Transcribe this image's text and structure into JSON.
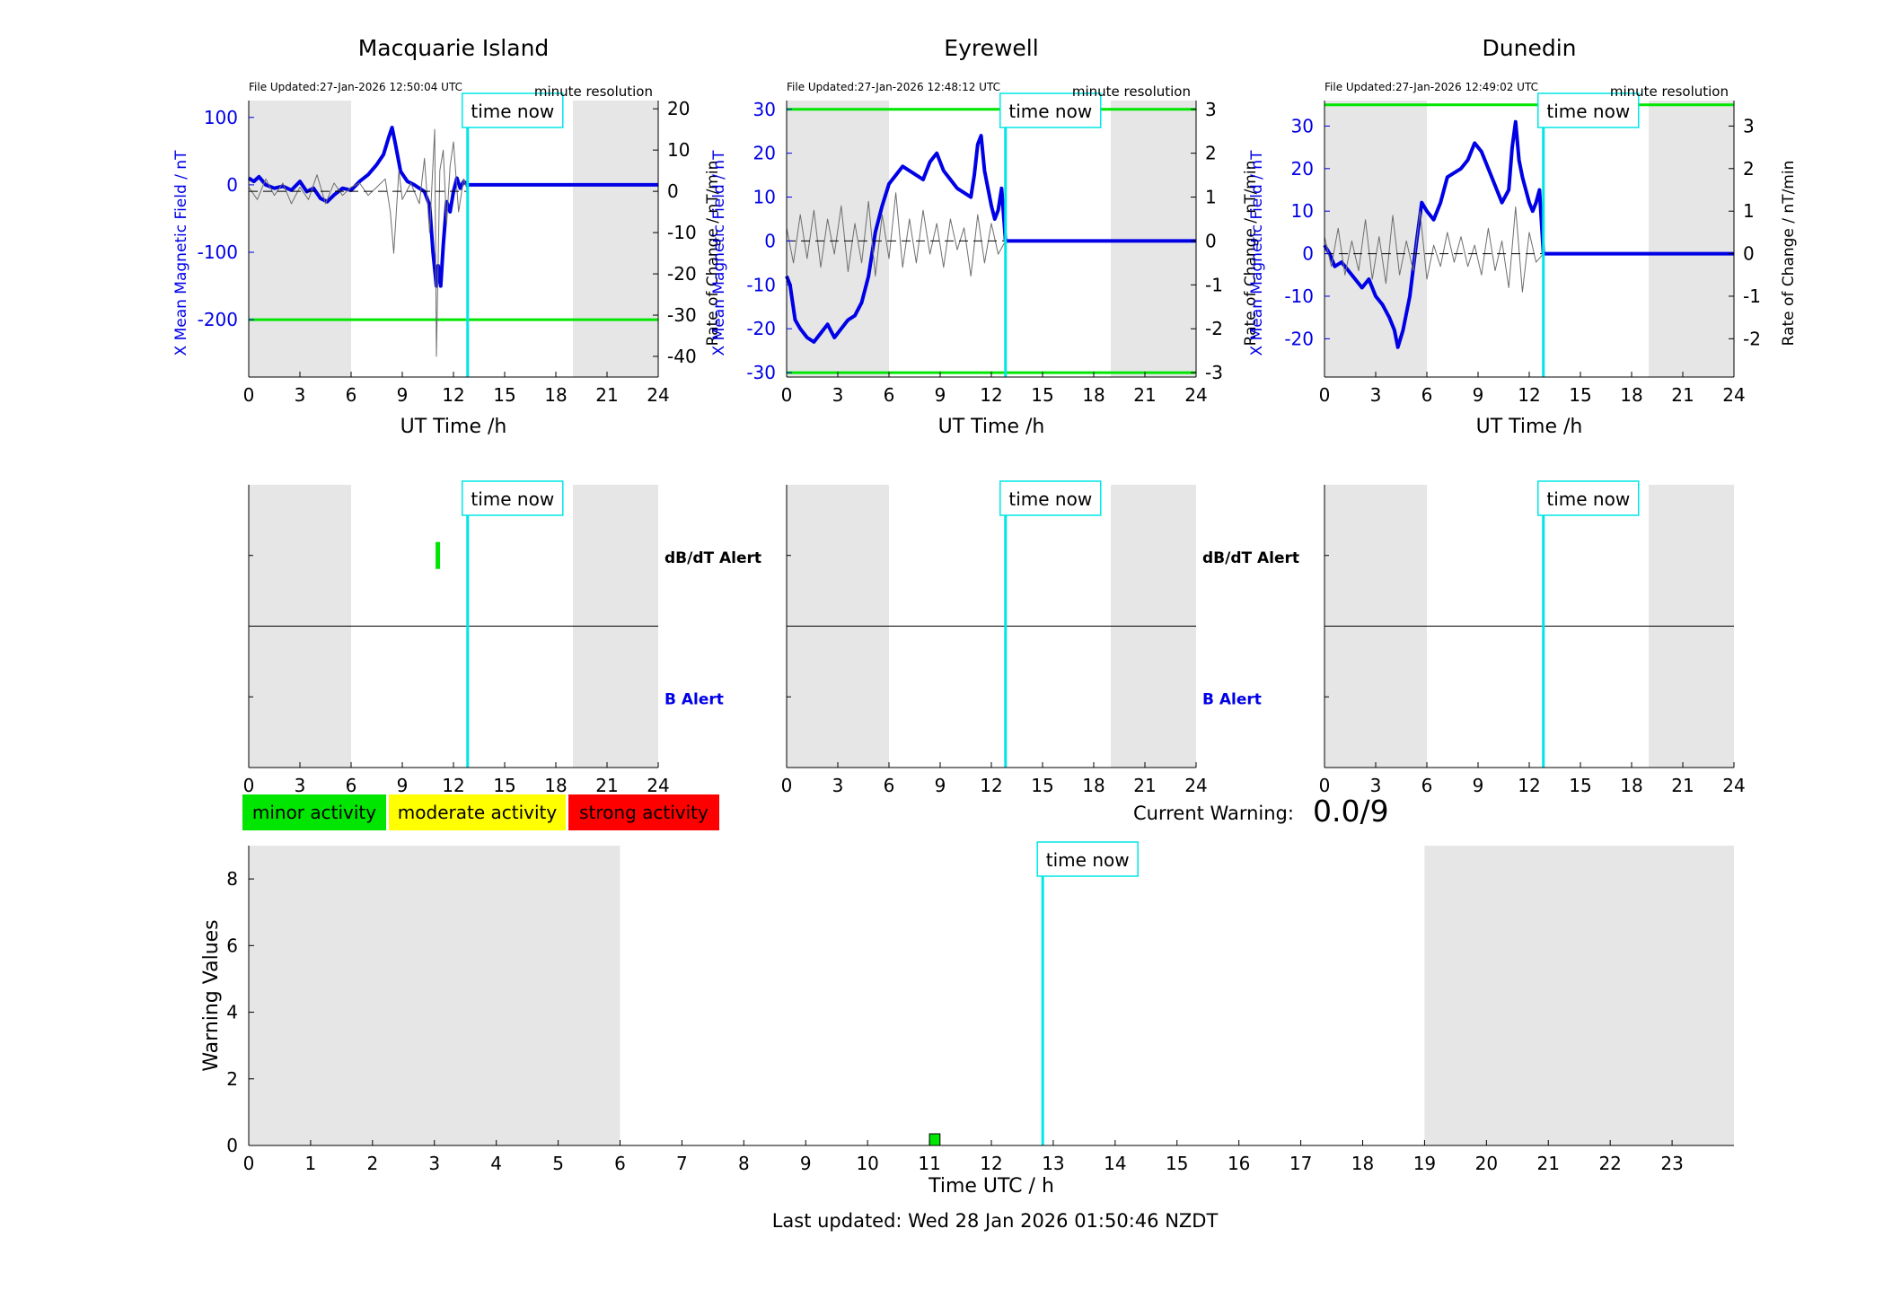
{
  "page": {
    "last_updated": "Last updated: Wed 28 Jan 2026 01:50:46 NZDT",
    "current_warning_label": "Current Warning:",
    "current_warning_value": "0.0/9"
  },
  "colors": {
    "field_trace": "#0000e6",
    "rate_trace": "#6e6e6e",
    "threshold": "#00e600",
    "time_now": "#00e6e6",
    "night_shade": "#e6e6e6",
    "minor": "#00e600",
    "moderate": "#ffff00",
    "strong": "#ff0000"
  },
  "legend": [
    {
      "label": "minor activity",
      "color": "#00e600"
    },
    {
      "label": "moderate activity",
      "color": "#ffff00"
    },
    {
      "label": "strong activity",
      "color": "#ff0000"
    }
  ],
  "chart_data": [
    {
      "type": "line",
      "station": "Macquarie Island",
      "title": "Macquarie Island",
      "file_updated": "File Updated:27-Jan-2026 12:50:04 UTC",
      "resolution": "minute resolution",
      "time_now_label": "time now",
      "time_now": 12.83,
      "night": [
        [
          0,
          6
        ],
        [
          19,
          24
        ]
      ],
      "xlabel": "UT Time /h",
      "ylabel_left": "X Mean Magnetic Field / nT",
      "ylabel_right": "Rate of Change / nT/min",
      "xlim": [
        0,
        24
      ],
      "xticks": [
        0,
        3,
        6,
        9,
        12,
        15,
        18,
        21,
        24
      ],
      "ylim_left": [
        -285,
        125
      ],
      "yticks_left": [
        100,
        0,
        -100,
        -200
      ],
      "ylim_right": [
        -45,
        22
      ],
      "yticks_right": [
        20,
        10,
        0,
        -10,
        -20,
        -30,
        -40
      ],
      "thresholds_left": [
        -200
      ],
      "series": [
        {
          "name": "X mean field",
          "axis": "left",
          "x": [
            0,
            0.3,
            0.6,
            1,
            1.5,
            2,
            2.5,
            3,
            3.4,
            3.8,
            4.2,
            4.6,
            5,
            5.5,
            6,
            6.5,
            7,
            7.5,
            7.9,
            8.2,
            8.4,
            8.6,
            8.9,
            9.3,
            9.7,
            10,
            10.3,
            10.6,
            10.8,
            11,
            11.1,
            11.25,
            11.4,
            11.6,
            11.8,
            12,
            12.2,
            12.4,
            12.6,
            12.83
          ],
          "y": [
            10,
            5,
            12,
            0,
            -5,
            -2,
            -8,
            5,
            -10,
            -5,
            -20,
            -25,
            -15,
            -5,
            -8,
            5,
            15,
            30,
            45,
            70,
            85,
            60,
            20,
            5,
            0,
            -5,
            -10,
            -30,
            -100,
            -150,
            -120,
            -150,
            -90,
            -25,
            -40,
            -10,
            10,
            -5,
            5,
            0
          ]
        },
        {
          "name": "rate of change",
          "axis": "right",
          "x": [
            0,
            0.5,
            1,
            1.5,
            2,
            2.5,
            3,
            3.5,
            4,
            4.5,
            5,
            5.5,
            6,
            6.5,
            7,
            7.5,
            8,
            8.3,
            8.5,
            8.8,
            9,
            9.5,
            10,
            10.3,
            10.6,
            10.9,
            11,
            11.2,
            11.4,
            11.6,
            11.8,
            12,
            12.3,
            12.6,
            12.83
          ],
          "y": [
            1,
            -2,
            3,
            -1,
            2,
            -3,
            1,
            -2,
            4,
            -3,
            2,
            -1,
            1,
            2,
            -1,
            1,
            3,
            -5,
            -15,
            5,
            -2,
            2,
            -3,
            8,
            -10,
            15,
            -40,
            5,
            10,
            -8,
            6,
            12,
            -5,
            3,
            0
          ]
        },
        {
          "name": "zero reference",
          "axis": "right",
          "x": [
            0,
            12.83
          ],
          "y": [
            0,
            0
          ]
        },
        {
          "name": "projection",
          "axis": "left",
          "x": [
            12.83,
            24
          ],
          "y": [
            0,
            0
          ]
        }
      ]
    },
    {
      "type": "line",
      "station": "Eyrewell",
      "title": "Eyrewell",
      "file_updated": "File Updated:27-Jan-2026 12:48:12 UTC",
      "resolution": "minute resolution",
      "time_now_label": "time now",
      "time_now": 12.83,
      "night": [
        [
          0,
          6
        ],
        [
          19,
          24
        ]
      ],
      "xlabel": "UT Time /h",
      "ylabel_left": "X Mean Magnetic Field / nT",
      "ylabel_right": "Rate of Change / nT/min",
      "xlim": [
        0,
        24
      ],
      "xticks": [
        0,
        3,
        6,
        9,
        12,
        15,
        18,
        21,
        24
      ],
      "ylim_left": [
        -31,
        32
      ],
      "yticks_left": [
        30,
        20,
        10,
        0,
        -10,
        -20,
        -30
      ],
      "ylim_right": [
        -3.1,
        3.2
      ],
      "yticks_right": [
        3,
        2,
        1,
        0,
        -1,
        -2,
        -3
      ],
      "thresholds_left": [
        30,
        -30
      ],
      "series": [
        {
          "name": "X mean field",
          "axis": "left",
          "x": [
            0,
            0.2,
            0.5,
            0.8,
            1.2,
            1.6,
            2,
            2.4,
            2.8,
            3.2,
            3.6,
            4,
            4.4,
            4.8,
            5.2,
            5.6,
            6,
            6.4,
            6.8,
            7.2,
            7.6,
            8,
            8.4,
            8.8,
            9.2,
            9.6,
            10,
            10.4,
            10.8,
            11,
            11.2,
            11.4,
            11.6,
            11.8,
            12,
            12.2,
            12.4,
            12.6,
            12.83
          ],
          "y": [
            -8,
            -10,
            -18,
            -20,
            -22,
            -23,
            -21,
            -19,
            -22,
            -20,
            -18,
            -17,
            -14,
            -8,
            2,
            8,
            13,
            15,
            17,
            16,
            15,
            14,
            18,
            20,
            16,
            14,
            12,
            11,
            10,
            15,
            22,
            24,
            16,
            12,
            8,
            5,
            7,
            12,
            0
          ]
        },
        {
          "name": "rate of change",
          "axis": "right",
          "x": [
            0,
            0.4,
            0.8,
            1.2,
            1.6,
            2,
            2.4,
            2.8,
            3.2,
            3.6,
            4,
            4.4,
            4.8,
            5.2,
            5.6,
            6,
            6.4,
            6.8,
            7.2,
            7.6,
            8,
            8.4,
            8.8,
            9.2,
            9.6,
            10,
            10.4,
            10.8,
            11.2,
            11.6,
            12,
            12.4,
            12.83
          ],
          "y": [
            0.3,
            -0.5,
            0.6,
            -0.4,
            0.7,
            -0.6,
            0.5,
            -0.3,
            0.8,
            -0.7,
            0.4,
            -0.5,
            0.9,
            -0.8,
            0.6,
            -0.4,
            1.1,
            -0.6,
            0.5,
            -0.5,
            0.7,
            -0.3,
            0.4,
            -0.6,
            0.5,
            -0.2,
            0.3,
            -0.8,
            0.6,
            -0.5,
            0.4,
            -0.3,
            0
          ]
        },
        {
          "name": "zero reference",
          "axis": "right",
          "x": [
            0,
            12.83
          ],
          "y": [
            0,
            0
          ]
        },
        {
          "name": "projection",
          "axis": "left",
          "x": [
            12.83,
            24
          ],
          "y": [
            0,
            0
          ]
        }
      ]
    },
    {
      "type": "line",
      "station": "Dunedin",
      "title": "Dunedin",
      "file_updated": "File Updated:27-Jan-2026 12:49:02 UTC",
      "resolution": "minute resolution",
      "time_now_label": "time now",
      "time_now": 12.83,
      "night": [
        [
          0,
          6
        ],
        [
          19,
          24
        ]
      ],
      "xlabel": "UT Time /h",
      "ylabel_left": "X Mean Magnetic Field / nT",
      "ylabel_right": "Rate of Change / nT/min",
      "xlim": [
        0,
        24
      ],
      "xticks": [
        0,
        3,
        6,
        9,
        12,
        15,
        18,
        21,
        24
      ],
      "ylim_left": [
        -29,
        36
      ],
      "yticks_left": [
        30,
        20,
        10,
        0,
        -10,
        -20
      ],
      "ylim_right": [
        -2.9,
        3.6
      ],
      "yticks_right": [
        3,
        2,
        1,
        0,
        -1,
        -2
      ],
      "thresholds_left": [
        35
      ],
      "series": [
        {
          "name": "X mean field",
          "axis": "left",
          "x": [
            0,
            0.3,
            0.6,
            1,
            1.4,
            1.8,
            2.2,
            2.6,
            3,
            3.4,
            3.8,
            4.1,
            4.3,
            4.6,
            5,
            5.4,
            5.7,
            6,
            6.4,
            6.8,
            7.2,
            7.6,
            8,
            8.4,
            8.8,
            9.2,
            9.6,
            10,
            10.4,
            10.8,
            11,
            11.2,
            11.4,
            11.6,
            11.8,
            12,
            12.2,
            12.4,
            12.6,
            12.83
          ],
          "y": [
            2,
            0,
            -3,
            -2,
            -4,
            -6,
            -8,
            -6,
            -10,
            -12,
            -15,
            -18,
            -22,
            -18,
            -10,
            3,
            12,
            10,
            8,
            12,
            18,
            19,
            20,
            22,
            26,
            24,
            20,
            16,
            12,
            15,
            25,
            31,
            22,
            18,
            15,
            12,
            10,
            12,
            15,
            0
          ]
        },
        {
          "name": "rate of change",
          "axis": "right",
          "x": [
            0,
            0.4,
            0.8,
            1.2,
            1.6,
            2,
            2.4,
            2.8,
            3.2,
            3.6,
            4,
            4.4,
            4.8,
            5.2,
            5.6,
            6,
            6.4,
            6.8,
            7.2,
            7.6,
            8,
            8.4,
            8.8,
            9.2,
            9.6,
            10,
            10.4,
            10.8,
            11.2,
            11.6,
            12,
            12.4,
            12.83
          ],
          "y": [
            0.4,
            -0.3,
            0.6,
            -0.5,
            0.3,
            -0.4,
            0.8,
            -0.6,
            0.4,
            -0.7,
            0.9,
            -0.5,
            0.3,
            -0.4,
            1.0,
            -0.6,
            0.2,
            -0.3,
            0.5,
            -0.2,
            0.4,
            -0.3,
            0.2,
            -0.5,
            0.6,
            -0.4,
            0.3,
            -0.8,
            1.1,
            -0.9,
            0.5,
            -0.2,
            0
          ]
        },
        {
          "name": "zero reference",
          "axis": "right",
          "x": [
            0,
            12.83
          ],
          "y": [
            0,
            0
          ]
        },
        {
          "name": "projection",
          "axis": "left",
          "x": [
            12.83,
            24
          ],
          "y": [
            0,
            0
          ]
        }
      ]
    },
    {
      "type": "bar",
      "station": "Macquarie Island",
      "chart": "alerts",
      "time_now_label": "time now",
      "time_now": 12.83,
      "night": [
        [
          0,
          6
        ],
        [
          19,
          24
        ]
      ],
      "xlim": [
        0,
        24
      ],
      "xticks": [
        0,
        3,
        6,
        9,
        12,
        15,
        18,
        21,
        24
      ],
      "rows": [
        "dB/dT Alert",
        "B Alert"
      ],
      "alerts": [
        {
          "row": "dB/dT Alert",
          "start": 10.95,
          "end": 11.15,
          "level": "minor"
        }
      ]
    },
    {
      "type": "bar",
      "station": "Eyrewell",
      "chart": "alerts",
      "time_now_label": "time now",
      "time_now": 12.83,
      "night": [
        [
          0,
          6
        ],
        [
          19,
          24
        ]
      ],
      "xlim": [
        0,
        24
      ],
      "xticks": [
        0,
        3,
        6,
        9,
        12,
        15,
        18,
        21,
        24
      ],
      "rows": [
        "dB/dT Alert",
        "B Alert"
      ],
      "alerts": []
    },
    {
      "type": "bar",
      "station": "Dunedin",
      "chart": "alerts",
      "time_now_label": "time now",
      "time_now": 12.83,
      "night": [
        [
          0,
          6
        ],
        [
          19,
          24
        ]
      ],
      "xlim": [
        0,
        24
      ],
      "xticks": [
        0,
        3,
        6,
        9,
        12,
        15,
        18,
        21,
        24
      ],
      "rows": [],
      "alerts": []
    },
    {
      "type": "bar",
      "chart": "warning",
      "time_now_label": "time now",
      "time_now": 12.83,
      "night": [
        [
          0,
          6
        ],
        [
          19,
          24
        ]
      ],
      "xlabel": "Time UTC / h",
      "ylabel": "Warning Values",
      "xlim": [
        0,
        24
      ],
      "xticks": [
        0,
        1,
        2,
        3,
        4,
        5,
        6,
        7,
        8,
        9,
        10,
        11,
        12,
        13,
        14,
        15,
        16,
        17,
        18,
        19,
        20,
        21,
        22,
        23
      ],
      "ylim": [
        0,
        9
      ],
      "yticks": [
        0,
        2,
        4,
        6,
        8
      ],
      "bars": [
        {
          "x": 11.0,
          "width": 0.17,
          "value": 0.35,
          "level": "minor"
        }
      ]
    }
  ]
}
